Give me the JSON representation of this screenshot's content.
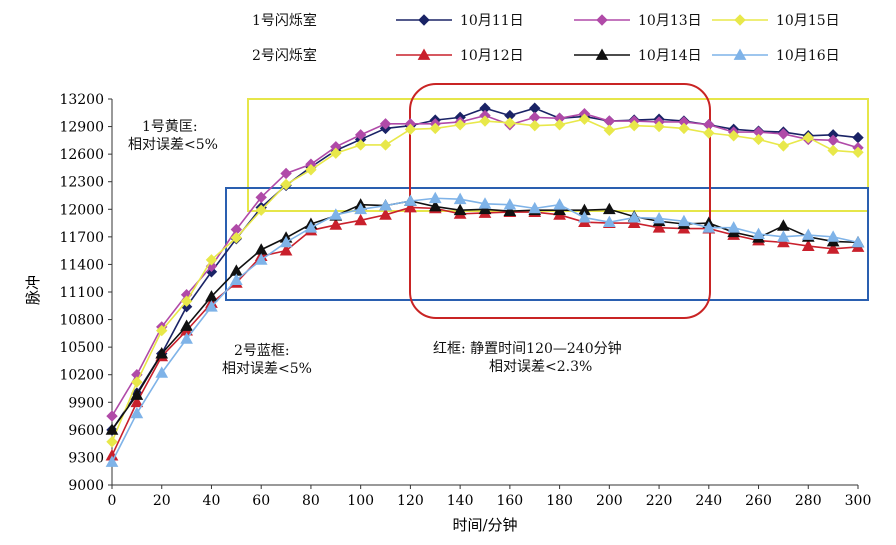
{
  "legend": {
    "group1_label": "1号闪烁室",
    "group2_label": "2号闪烁室",
    "items": [
      {
        "name": "10月11日",
        "color": "#1a2366",
        "marker": "diamond"
      },
      {
        "name": "10月13日",
        "color": "#b04aa8",
        "marker": "diamond"
      },
      {
        "name": "10月15日",
        "color": "#e8e84a",
        "marker": "diamond"
      },
      {
        "name": "10月12日",
        "color": "#c9202c",
        "marker": "triangle"
      },
      {
        "name": "10月14日",
        "color": "#111111",
        "marker": "triangle"
      },
      {
        "name": "10月16日",
        "color": "#7fb3e8",
        "marker": "triangle"
      }
    ]
  },
  "annotations": {
    "yellow_box_line1": "1号黄匡:",
    "yellow_box_line2": "相对误差<5%",
    "blue_box_line1": "2号蓝框:",
    "blue_box_line2": "相对误差<5%",
    "red_box_line1": "红框: 静置时间120—240分钟",
    "red_box_line2": "相对误差<2.3%"
  },
  "colors": {
    "yellow_box": "#e6e64a",
    "blue_box": "#2a5fb0",
    "red_box": "#c92424"
  },
  "chart_data": {
    "type": "line",
    "xlabel": "时间/分钟",
    "ylabel": "脉冲",
    "xlim": [
      0,
      300
    ],
    "ylim": [
      9000,
      13200
    ],
    "xticks": [
      0,
      20,
      40,
      60,
      80,
      100,
      120,
      140,
      160,
      180,
      200,
      220,
      240,
      260,
      280,
      300
    ],
    "xtick_labels": [
      "0",
      "20",
      "40",
      "60",
      "80",
      "100",
      "120",
      "140",
      "160",
      "180",
      "200",
      "220",
      "240",
      "260",
      "280",
      "300"
    ],
    "yticks": [
      9000,
      9300,
      9600,
      9900,
      10200,
      10500,
      10800,
      11100,
      11400,
      11700,
      12000,
      12300,
      12600,
      12900,
      13200
    ],
    "ytick_labels": [
      "9000",
      "9300",
      "9600",
      "9900",
      "10200",
      "10500",
      "10800",
      "11100",
      "11400",
      "11700",
      "12000",
      "12300",
      "12600",
      "12900",
      "13200"
    ],
    "grid": false,
    "x": [
      0,
      10,
      20,
      30,
      40,
      50,
      60,
      70,
      80,
      90,
      100,
      110,
      120,
      130,
      140,
      150,
      160,
      170,
      180,
      190,
      200,
      210,
      220,
      230,
      240,
      250,
      260,
      270,
      280,
      290,
      300
    ],
    "series": [
      {
        "name": "10月11日",
        "values": [
          9600,
          10000,
          10430,
          10940,
          11320,
          11680,
          12020,
          12260,
          12460,
          12640,
          12760,
          12880,
          12910,
          12970,
          13000,
          13100,
          13020,
          13100,
          12990,
          13010,
          12960,
          12970,
          12980,
          12960,
          12920,
          12870,
          12850,
          12840,
          12800,
          12810,
          12780
        ]
      },
      {
        "name": "10月13日",
        "values": [
          9750,
          10200,
          10720,
          11070,
          11380,
          11780,
          12130,
          12390,
          12490,
          12680,
          12810,
          12930,
          12930,
          12930,
          12950,
          13020,
          12920,
          13000,
          12990,
          13040,
          12960,
          12960,
          12950,
          12950,
          12920,
          12840,
          12840,
          12820,
          12760,
          12750,
          12670
        ]
      },
      {
        "name": "10月15日",
        "values": [
          9470,
          10120,
          10680,
          11000,
          11450,
          11690,
          11990,
          12270,
          12430,
          12610,
          12700,
          12700,
          12870,
          12880,
          12920,
          12960,
          12940,
          12910,
          12920,
          12980,
          12860,
          12910,
          12900,
          12880,
          12830,
          12800,
          12760,
          12690,
          12780,
          12640,
          12620
        ]
      },
      {
        "name": "10月12日",
        "values": [
          9320,
          9900,
          10400,
          10680,
          10980,
          11200,
          11490,
          11550,
          11770,
          11830,
          11880,
          11940,
          12020,
          12010,
          11950,
          11960,
          11970,
          11970,
          11940,
          11860,
          11850,
          11850,
          11800,
          11790,
          11790,
          11720,
          11660,
          11640,
          11600,
          11570,
          11590
        ]
      },
      {
        "name": "10月14日",
        "values": [
          9600,
          9980,
          10430,
          10730,
          11050,
          11330,
          11560,
          11690,
          11840,
          11930,
          12050,
          12040,
          12090,
          12030,
          11990,
          12000,
          11980,
          11990,
          11990,
          11990,
          12000,
          11920,
          11870,
          11840,
          11850,
          11750,
          11690,
          11820,
          11700,
          11650,
          11640
        ]
      },
      {
        "name": "10月16日",
        "values": [
          9250,
          9780,
          10220,
          10590,
          10940,
          11230,
          11450,
          11640,
          11800,
          11940,
          12000,
          12040,
          12090,
          12120,
          12110,
          12060,
          12050,
          12010,
          12050,
          11910,
          11860,
          11910,
          11900,
          11870,
          11800,
          11800,
          11730,
          11700,
          11720,
          11700,
          11640
        ]
      }
    ]
  }
}
